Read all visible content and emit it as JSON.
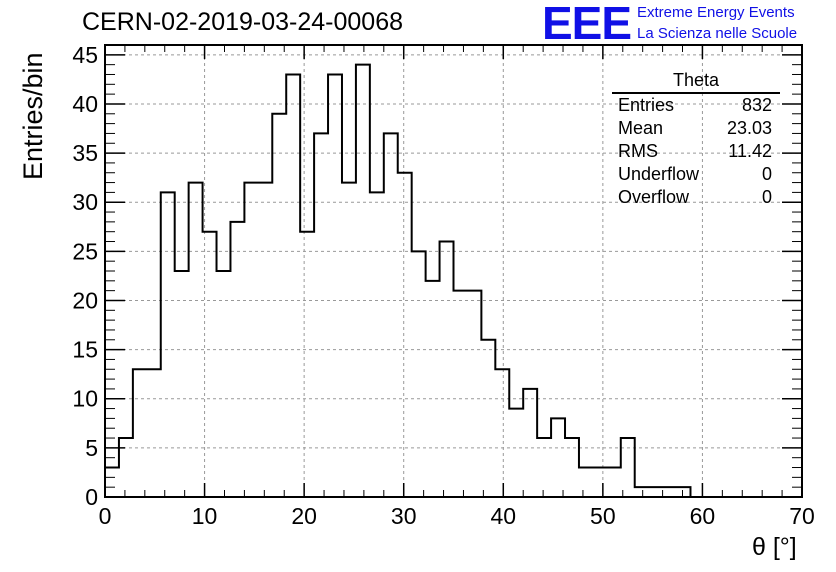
{
  "header": {
    "run_title": "CERN-02-2019-03-24-00068",
    "logo_text": "EEE",
    "logo_line1": "Extreme Energy Events",
    "logo_line2": "La Scienza nelle Scuole",
    "logo_color": "#1010e6"
  },
  "stats": {
    "title": "Theta",
    "rows": [
      {
        "label": "Entries",
        "value": "832"
      },
      {
        "label": "Mean",
        "value": "23.03"
      },
      {
        "label": "RMS",
        "value": "11.42"
      },
      {
        "label": "Underflow",
        "value": "0"
      },
      {
        "label": "Overflow",
        "value": "0"
      }
    ]
  },
  "chart_data": {
    "type": "bar",
    "histogram": true,
    "title": "CERN-02-2019-03-24-00068",
    "xlabel": "θ [°]",
    "ylabel": "Entries/bin",
    "xlim": [
      0,
      70
    ],
    "ylim": [
      0,
      46
    ],
    "bin_width": 1.4,
    "bin_edges_start": 0,
    "xticks": [
      0,
      10,
      20,
      30,
      40,
      50,
      60,
      70
    ],
    "yticks": [
      0,
      5,
      10,
      15,
      20,
      25,
      30,
      35,
      40,
      45
    ],
    "grid": true,
    "values": [
      3,
      6,
      13,
      13,
      31,
      23,
      32,
      27,
      23,
      28,
      32,
      32,
      39,
      43,
      27,
      37,
      43,
      32,
      44,
      31,
      37,
      33,
      25,
      22,
      26,
      21,
      21,
      16,
      13,
      9,
      11,
      6,
      8,
      6,
      3,
      3,
      3,
      6,
      1,
      1,
      1,
      1
    ]
  }
}
